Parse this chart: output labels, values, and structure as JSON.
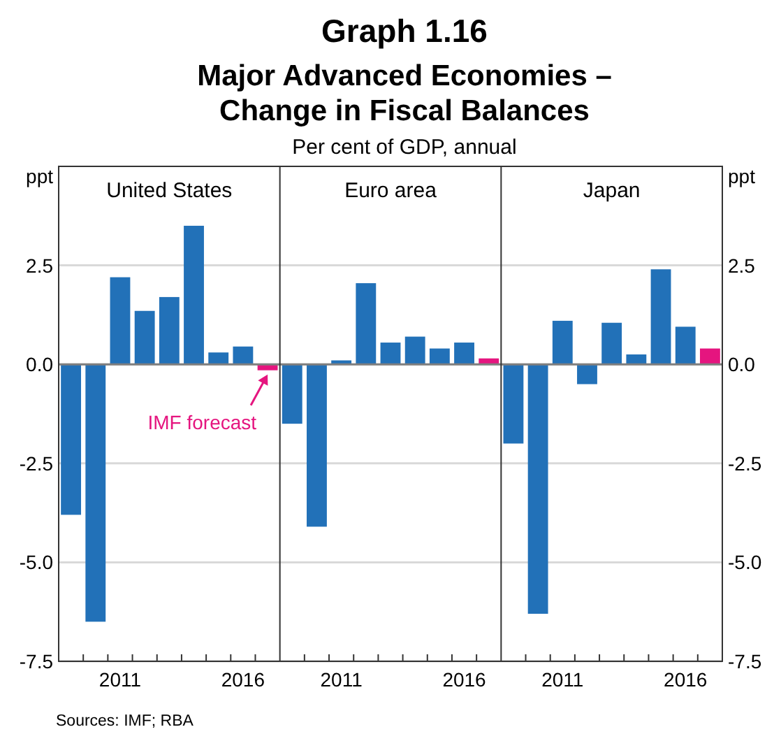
{
  "chart_data": [
    {
      "type": "bar",
      "title": "United States",
      "ylabel": "ppt",
      "categories": [
        null,
        null,
        "2011",
        null,
        null,
        null,
        null,
        "2016",
        null
      ],
      "ylim": [
        -7.5,
        5
      ],
      "yticks": [
        -7.5,
        {
          "value": -5,
          "label": "-5.0"
        },
        -2.5,
        {
          "value": 0,
          "label": "0.0"
        },
        2.5
      ],
      "grid": "y",
      "tick_labels": true,
      "series": [
        {
          "values": [
            -3.8,
            -6.5,
            2.2,
            1.35,
            1.7,
            3.5,
            0.3,
            0.45,
            -0.15
          ],
          "colors": [
            "#2271b8",
            "#2271b8",
            "#2271b8",
            "#2271b8",
            "#2271b8",
            "#2271b8",
            "#2271b8",
            "#2271b8",
            "#e5157f"
          ]
        }
      ],
      "annotations": [
        "Graph 1.16",
        "Major Advanced Economies – Change in Fiscal Balances",
        "Per cent of GDP, annual",
        "Sources: IMF; RBA",
        "IMF forecast"
      ]
    },
    {
      "type": "bar",
      "title": "Euro area",
      "categories": [
        null,
        null,
        "2011",
        null,
        null,
        null,
        null,
        "2016",
        null
      ],
      "ylim": [
        -7.5,
        5
      ],
      "yticks": [
        -7.5,
        -5.0,
        -2.5,
        0.0,
        2.5
      ],
      "grid": "y",
      "tick_labels": "x",
      "series": [
        {
          "values": [
            -1.5,
            -4.1,
            0.1,
            2.05,
            0.55,
            0.7,
            0.4,
            0.55,
            0.15
          ],
          "colors": [
            "#2271b8",
            "#2271b8",
            "#2271b8",
            "#2271b8",
            "#2271b8",
            "#2271b8",
            "#2271b8",
            "#2271b8",
            "#e5157f"
          ]
        }
      ]
    },
    {
      "type": "bar",
      "title": "Japan",
      "y2label": "ppt",
      "categories": [
        null,
        null,
        "2011",
        null,
        null,
        null,
        null,
        "2016",
        null
      ],
      "y2lim": [
        -7.5,
        5
      ],
      "y2ticks": [
        -7.5,
        {
          "value": -5,
          "label": "-5.0"
        },
        -2.5,
        {
          "value": 0,
          "label": "0.0"
        },
        2.5
      ],
      "grid": "y",
      "tick_labels": true,
      "series": [
        {
          "axis": "y2",
          "values": [
            -2.0,
            -6.3,
            1.1,
            -0.5,
            1.05,
            0.25,
            2.4,
            0.95,
            0.4
          ],
          "colors": [
            "#2271b8",
            "#2271b8",
            "#2271b8",
            "#2271b8",
            "#2271b8",
            "#2271b8",
            "#2271b8",
            "#2271b8",
            "#e5157f"
          ]
        }
      ]
    }
  ]
}
